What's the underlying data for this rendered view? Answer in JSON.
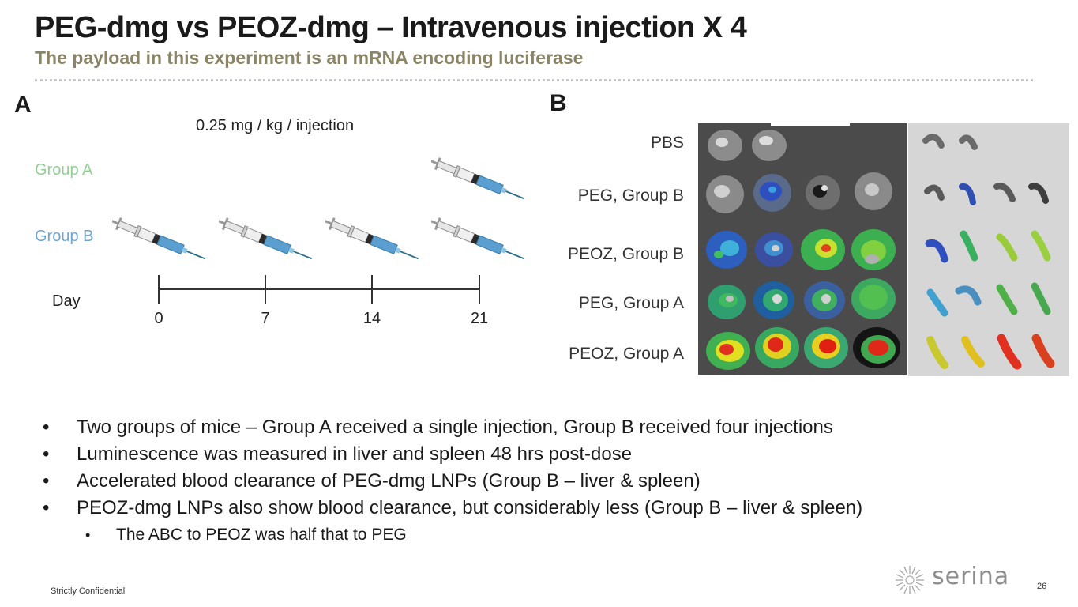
{
  "slide": {
    "title": "PEG-dmg vs PEOZ-dmg – Intravenous injection X 4",
    "subtitle": "The payload in this experiment is an mRNA encoding luciferase"
  },
  "panel_a": {
    "letter": "A",
    "dose_label": "0.25 mg / kg / injection",
    "groups": [
      {
        "label": "Group A",
        "color": "#8fcf94"
      },
      {
        "label": "Group B",
        "color": "#6fa3d4"
      }
    ],
    "axis_label": "Day",
    "days": [
      "0",
      "7",
      "14",
      "21"
    ]
  },
  "panel_b": {
    "letter": "B",
    "rows": [
      "PBS",
      "PEG, Group B",
      "PEOZ, Group B",
      "PEG, Group A",
      "PEOZ, Group A"
    ]
  },
  "bullets": [
    {
      "level": 1,
      "text": "Two groups of mice – Group A received a single injection, Group B received four injections"
    },
    {
      "level": 1,
      "text": "Luminescence was measured in liver and spleen 48 hrs post-dose"
    },
    {
      "level": 1,
      "text": "Accelerated blood clearance of PEG-dmg LNPs (Group B – liver & spleen)"
    },
    {
      "level": 1,
      "text": "PEOZ-dmg LNPs also show blood clearance, but considerably less (Group B – liver & spleen)"
    },
    {
      "level": 2,
      "text": "The ABC to PEOZ was half that to PEG"
    }
  ],
  "footer": {
    "confidential": "Strictly Confidential",
    "page_number": "26",
    "brand": "serina"
  }
}
